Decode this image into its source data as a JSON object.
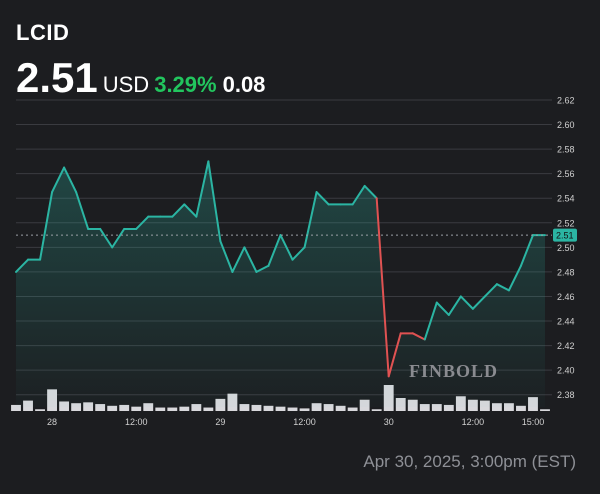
{
  "header": {
    "ticker": "LCID",
    "price": "2.51",
    "currency": "USD",
    "change_pct": "3.29%",
    "change_abs": "0.08",
    "up_color": "#22c55e"
  },
  "footer": {
    "timestamp": "Apr 30, 2025, 3:00pm (EST)"
  },
  "watermark": {
    "text": "FINBOLD"
  },
  "chart_data": {
    "type": "line",
    "title": "",
    "xlabel": "",
    "ylabel": "",
    "ylim": [
      2.37,
      2.62
    ],
    "y_ticks": [
      2.38,
      2.4,
      2.42,
      2.44,
      2.46,
      2.48,
      2.5,
      2.52,
      2.54,
      2.56,
      2.58,
      2.6,
      2.62
    ],
    "y_tick_labels": [
      "2.38",
      "2.40",
      "2.42",
      "2.44",
      "2.46",
      "2.48",
      "2.50",
      "2.52",
      "2.54",
      "2.56",
      "2.58",
      "2.60",
      "2.62"
    ],
    "x_tick_labels": [
      {
        "index": 3,
        "label": "28"
      },
      {
        "index": 10,
        "label": "12:00"
      },
      {
        "index": 17,
        "label": "29"
      },
      {
        "index": 24,
        "label": "12:00"
      },
      {
        "index": 31,
        "label": "30"
      },
      {
        "index": 38,
        "label": "12:00"
      },
      {
        "index": 43,
        "label": "15:00"
      }
    ],
    "current_price": 2.51,
    "current_price_label": "2.51",
    "line_color": "#2bb5a3",
    "down_color": "#e05252",
    "volume_color": "#d8d8dc",
    "grid": true,
    "series": [
      {
        "values": [
          2.48,
          2.49,
          2.49,
          2.545,
          2.565,
          2.545,
          2.515,
          2.515,
          2.5,
          2.515,
          2.515,
          2.525,
          2.525,
          2.525,
          2.535,
          2.525,
          2.57,
          2.505,
          2.48,
          2.5,
          2.48,
          2.485,
          2.51,
          2.49,
          2.5,
          2.545,
          2.535,
          2.535,
          2.535,
          2.55,
          2.54,
          2.395,
          2.43,
          2.43,
          2.425,
          2.455,
          2.445,
          2.46,
          2.45,
          2.46,
          2.47,
          2.465,
          2.485,
          2.51,
          2.51
        ]
      }
    ],
    "volume": [
      7,
      12,
      2,
      25,
      11,
      9,
      10,
      8,
      6,
      7,
      5,
      9,
      4,
      4,
      5,
      8,
      4,
      14,
      20,
      8,
      7,
      6,
      5,
      4,
      3,
      9,
      8,
      6,
      4,
      13,
      2,
      30,
      15,
      13,
      8,
      8,
      7,
      17,
      13,
      12,
      9,
      9,
      6,
      16,
      2
    ]
  }
}
